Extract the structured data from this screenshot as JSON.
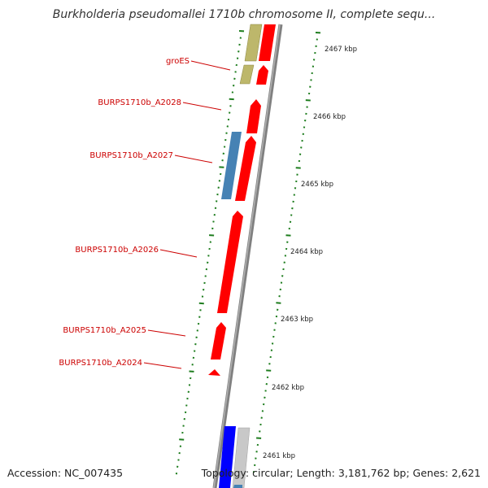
{
  "title": "Burkholderia pseudomallei 1710b chromosome II, complete sequ...",
  "footer": {
    "accession": "Accession: NC_007435",
    "topology": "Topology: circular; Length: 3,181,762 bp; Genes: 2,621"
  },
  "gene_labels": [
    {
      "id": "groES",
      "text": "groES"
    },
    {
      "id": "a2028",
      "text": "BURPS1710b_A2028"
    },
    {
      "id": "a2027",
      "text": "BURPS1710b_A2027"
    },
    {
      "id": "a2026",
      "text": "BURPS1710b_A2026"
    },
    {
      "id": "a2025",
      "text": "BURPS1710b_A2025"
    },
    {
      "id": "a2024",
      "text": "BURPS1710b_A2024"
    }
  ],
  "scale_ticks": [
    {
      "label": "2467 kbp"
    },
    {
      "label": "2466 kbp"
    },
    {
      "label": "2465 kbp"
    },
    {
      "label": "2464 kbp"
    },
    {
      "label": "2463 kbp"
    },
    {
      "label": "2462 kbp"
    },
    {
      "label": "2461 kbp"
    }
  ],
  "colors": {
    "forward_gene": "#ff0000",
    "reverse_gene": "#4682b4",
    "groES_gene": "#bdb76b",
    "blue_gene": "#0000ff",
    "gray_gene": "#c8c8c8",
    "backbone": "#808080",
    "tick": "#1e7d1e",
    "label_text": "#cc0000",
    "scale_text": "#222222"
  }
}
